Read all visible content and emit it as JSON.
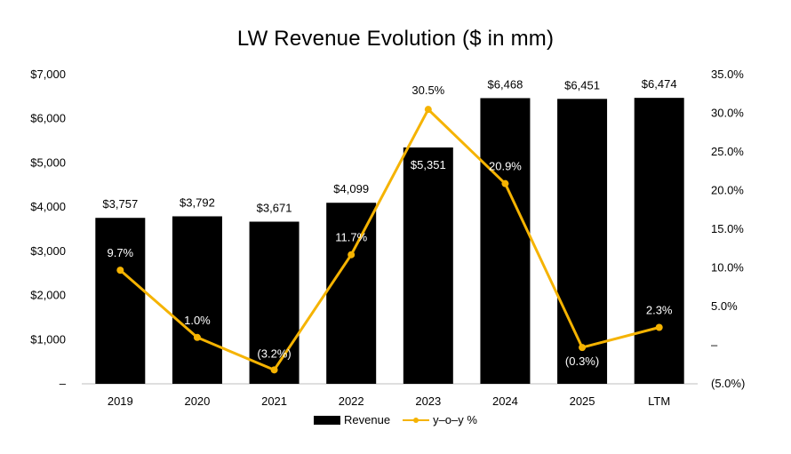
{
  "chart_data": {
    "type": "bar",
    "title": "LW Revenue Evolution ($ in mm)",
    "categories": [
      "2019",
      "2020",
      "2021",
      "2022",
      "2023",
      "2024",
      "2025",
      "LTM"
    ],
    "series": [
      {
        "name": "Revenue",
        "type": "bar",
        "axis": "left",
        "values": [
          3757,
          3792,
          3671,
          4099,
          5351,
          6468,
          6451,
          6474
        ],
        "labels": [
          "$3,757",
          "$3,792",
          "$3,671",
          "$4,099",
          "$5,351",
          "$6,468",
          "$6,451",
          "$6,474"
        ],
        "color": "#000000"
      },
      {
        "name": "y–o–y %",
        "type": "line",
        "axis": "right",
        "values": [
          9.7,
          1.0,
          -3.2,
          11.7,
          30.5,
          20.9,
          -0.3,
          2.3
        ],
        "labels": [
          "9.7%",
          "1.0%",
          "(3.2%)",
          "11.7%",
          "30.5%",
          "20.9%",
          "(0.3%)",
          "2.3%"
        ],
        "color": "#f5b301"
      }
    ],
    "ylim_left": [
      0,
      7000
    ],
    "ylim_right": [
      -5,
      35
    ],
    "left_ticks": [
      "–",
      "$1,000",
      "$2,000",
      "$3,000",
      "$4,000",
      "$5,000",
      "$6,000",
      "$7,000"
    ],
    "right_ticks": [
      "(5.0%)",
      "–",
      "5.0%",
      "10.0%",
      "15.0%",
      "20.0%",
      "25.0%",
      "30.0%",
      "35.0%"
    ],
    "grid": false,
    "legend_position": "bottom"
  }
}
